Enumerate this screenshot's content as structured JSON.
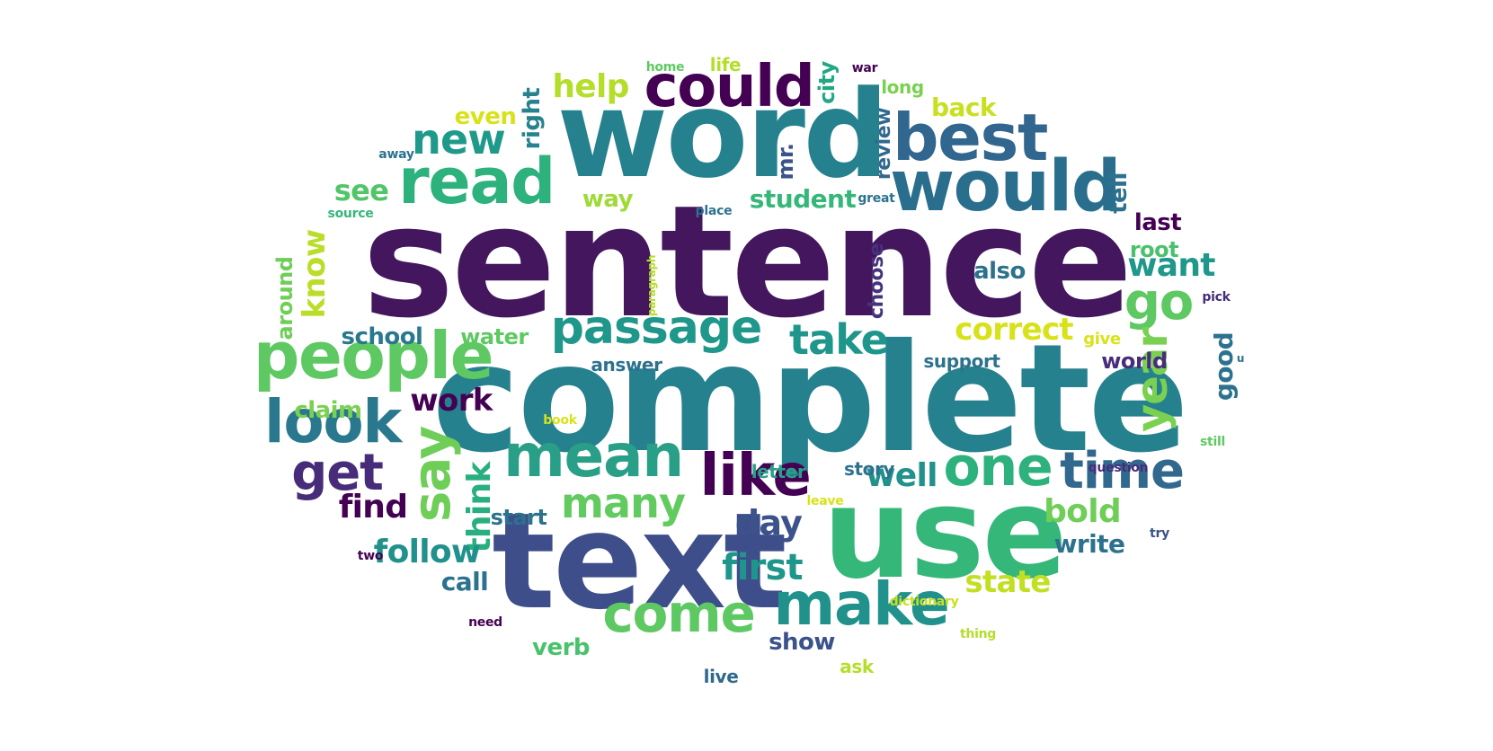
{
  "words": [
    {
      "text": "sentence",
      "color": "#43165e"
    },
    {
      "text": "complete",
      "color": "#26818e"
    },
    {
      "text": "word",
      "color": "#26818e"
    },
    {
      "text": "text",
      "color": "#3d4e8a"
    },
    {
      "text": "use",
      "color": "#35b779"
    },
    {
      "text": "would",
      "color": "#2a6e8e"
    },
    {
      "text": "best",
      "color": "#31668e"
    },
    {
      "text": "could",
      "color": "#440154"
    },
    {
      "text": "read",
      "color": "#2db27d"
    },
    {
      "text": "people",
      "color": "#5ec962"
    },
    {
      "text": "passage",
      "color": "#1f978b"
    },
    {
      "text": "mean",
      "color": "#2a9f87"
    },
    {
      "text": "make",
      "color": "#21918c"
    },
    {
      "text": "look",
      "color": "#2a788e"
    },
    {
      "text": "like",
      "color": "#440154"
    },
    {
      "text": "time",
      "color": "#31688e"
    },
    {
      "text": "one",
      "color": "#2db27d"
    },
    {
      "text": "come",
      "color": "#5ec962"
    },
    {
      "text": "get",
      "color": "#472c7a"
    },
    {
      "text": "say",
      "color": "#6ece58"
    },
    {
      "text": "many",
      "color": "#62cb5f"
    },
    {
      "text": "take",
      "color": "#1f968b"
    },
    {
      "text": "new",
      "color": "#1f9a8a"
    },
    {
      "text": "go",
      "color": "#5ec962"
    },
    {
      "text": "year",
      "color": "#7ad151"
    },
    {
      "text": "first",
      "color": "#1f968b"
    },
    {
      "text": "help",
      "color": "#b5de2b"
    },
    {
      "text": "want",
      "color": "#1f978b"
    },
    {
      "text": "day",
      "color": "#3b528b"
    },
    {
      "text": "well",
      "color": "#21918c"
    },
    {
      "text": "think",
      "color": "#29af7f"
    },
    {
      "text": "correct",
      "color": "#d8e219"
    },
    {
      "text": "bold",
      "color": "#6ece58"
    },
    {
      "text": "find",
      "color": "#440154"
    },
    {
      "text": "follow",
      "color": "#21918c"
    },
    {
      "text": "state",
      "color": "#c2df23"
    },
    {
      "text": "work",
      "color": "#440154"
    },
    {
      "text": "know",
      "color": "#bade28"
    },
    {
      "text": "see",
      "color": "#52c569"
    },
    {
      "text": "student",
      "color": "#35b779"
    },
    {
      "text": "show",
      "color": "#3b528b"
    },
    {
      "text": "call",
      "color": "#2c728e"
    },
    {
      "text": "good",
      "color": "#2c728e"
    },
    {
      "text": "write",
      "color": "#2c728e"
    },
    {
      "text": "back",
      "color": "#c8e020"
    },
    {
      "text": "even",
      "color": "#d8e219"
    },
    {
      "text": "way",
      "color": "#a0da39"
    },
    {
      "text": "right",
      "color": "#26828e"
    },
    {
      "text": "mr.",
      "color": "#3b528b"
    },
    {
      "text": "city",
      "color": "#22a884"
    },
    {
      "text": "review",
      "color": "#31688e"
    },
    {
      "text": "tell",
      "color": "#2c728e"
    },
    {
      "text": "last",
      "color": "#440154"
    },
    {
      "text": "root",
      "color": "#4ac16d"
    },
    {
      "text": "also",
      "color": "#2c728e"
    },
    {
      "text": "choose",
      "color": "#46337e"
    },
    {
      "text": "school",
      "color": "#2a788e"
    },
    {
      "text": "water",
      "color": "#5ec962"
    },
    {
      "text": "claim",
      "color": "#7ad151"
    },
    {
      "text": "world",
      "color": "#472d7b"
    },
    {
      "text": "support",
      "color": "#2c728e"
    },
    {
      "text": "answer",
      "color": "#2c728e"
    },
    {
      "text": "start",
      "color": "#2c728e"
    },
    {
      "text": "around",
      "color": "#6ece58"
    },
    {
      "text": "verb",
      "color": "#4ac16d"
    },
    {
      "text": "live",
      "color": "#31688e"
    },
    {
      "text": "ask",
      "color": "#b5de2b"
    },
    {
      "text": "letter",
      "color": "#2a9f87"
    },
    {
      "text": "story",
      "color": "#2c728e"
    },
    {
      "text": "give",
      "color": "#d8e219"
    },
    {
      "text": "long",
      "color": "#7ad151"
    },
    {
      "text": "life",
      "color": "#b5de2b"
    },
    {
      "text": "home",
      "color": "#5ec962"
    },
    {
      "text": "war",
      "color": "#440154"
    },
    {
      "text": "away",
      "color": "#2c728e"
    },
    {
      "text": "source",
      "color": "#35b779"
    },
    {
      "text": "place",
      "color": "#2c728e"
    },
    {
      "text": "great",
      "color": "#2c728e"
    },
    {
      "text": "paragraph",
      "color": "#b5de2b"
    },
    {
      "text": "pick",
      "color": "#472c7a"
    },
    {
      "text": "u",
      "color": "#2c728e"
    },
    {
      "text": "still",
      "color": "#5ec962"
    },
    {
      "text": "question",
      "color": "#472c7a"
    },
    {
      "text": "try",
      "color": "#3b528b"
    },
    {
      "text": "leave",
      "color": "#d8e219"
    },
    {
      "text": "book",
      "color": "#d8e219"
    },
    {
      "text": "two",
      "color": "#440154"
    },
    {
      "text": "need",
      "color": "#440154"
    },
    {
      "text": "dictionary",
      "color": "#c8e020"
    },
    {
      "text": "thing",
      "color": "#b5de2b"
    }
  ]
}
